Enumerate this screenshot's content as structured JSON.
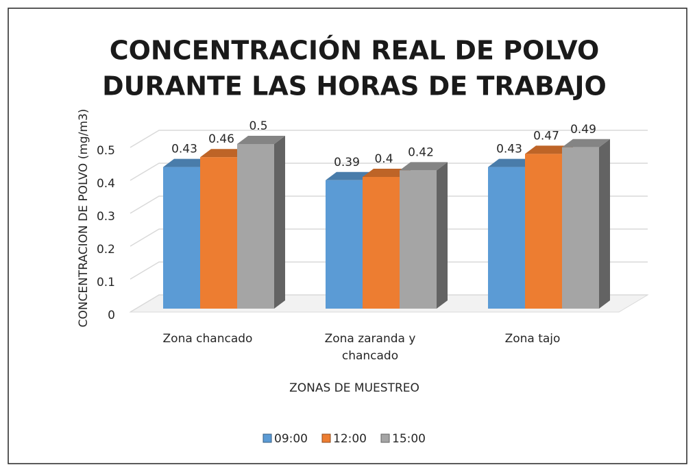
{
  "chart_data": {
    "type": "bar3d",
    "title": [
      "CONCENTRACIÓN REAL DE POLVO",
      "DURANTE LAS HORAS DE TRABAJO"
    ],
    "y_label": "CONCENTRACION DE POLVO (mg/m3)",
    "x_label": "ZONAS DE MUESTREO",
    "categories": [
      "Zona chancado",
      "Zona zaranda y chancado",
      "Zona tajo"
    ],
    "series": [
      {
        "name": "09:00",
        "color": "#5b9bd5",
        "values": [
          0.43,
          0.39,
          0.43
        ]
      },
      {
        "name": "12:00",
        "color": "#ed7d31",
        "values": [
          0.46,
          0.4,
          0.47
        ]
      },
      {
        "name": "15:00",
        "color": "#a5a5a5",
        "values": [
          0.5,
          0.42,
          0.49
        ]
      }
    ],
    "ylim": [
      0,
      0.5
    ],
    "yticks": [
      0,
      0.1,
      0.2,
      0.3,
      0.4,
      0.5
    ],
    "grid": true,
    "legend": "bottom"
  }
}
